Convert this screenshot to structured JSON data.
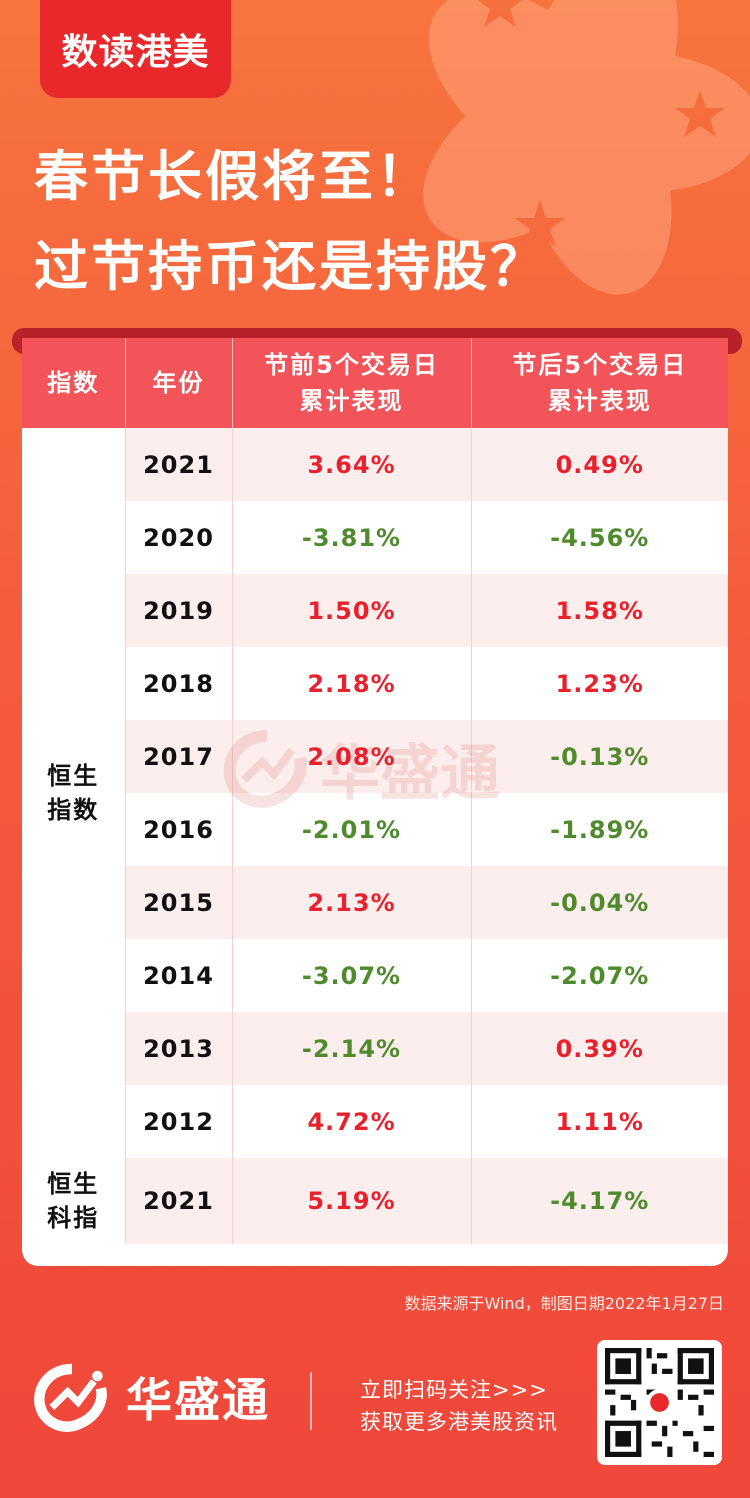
{
  "badge": "数读港美",
  "headline": {
    "line1": "春节长假将至！",
    "line2": "过节持币还是持股？"
  },
  "table": {
    "headers": {
      "index": "指数",
      "year": "年份",
      "pre_line1": "节前5个交易日",
      "pre_line2": "累计表现",
      "post_line1": "节后5个交易日",
      "post_line2": "累计表现"
    },
    "groups": [
      {
        "name_line1": "恒生",
        "name_line2": "指数"
      },
      {
        "name_line1": "恒生",
        "name_line2": "科指"
      }
    ],
    "rows": [
      {
        "year": "2021",
        "pre": "3.64%",
        "post": "0.49%"
      },
      {
        "year": "2020",
        "pre": "-3.81%",
        "post": "-4.56%"
      },
      {
        "year": "2019",
        "pre": "1.50%",
        "post": "1.58%"
      },
      {
        "year": "2018",
        "pre": "2.18%",
        "post": "1.23%"
      },
      {
        "year": "2017",
        "pre": "2.08%",
        "post": "-0.13%"
      },
      {
        "year": "2016",
        "pre": "-2.01%",
        "post": "-1.89%"
      },
      {
        "year": "2015",
        "pre": "2.13%",
        "post": "-0.04%"
      },
      {
        "year": "2014",
        "pre": "-3.07%",
        "post": "-2.07%"
      },
      {
        "year": "2013",
        "pre": "-2.14%",
        "post": "0.39%"
      },
      {
        "year": "2012",
        "pre": "4.72%",
        "post": "1.11%"
      },
      {
        "year": "2021",
        "pre": "5.19%",
        "post": "-4.17%"
      }
    ]
  },
  "watermark": "华盛通",
  "source": "数据来源于Wind，制图日期2022年1月27日",
  "footer": {
    "brand": "华盛通",
    "cta_line1": "立即扫码关注>>>",
    "cta_line2": "获取更多港美股资讯"
  },
  "colors": {
    "positive": "#e8212d",
    "negative": "#4f8a2c",
    "header": "#f25459",
    "badge": "#e8282b"
  }
}
